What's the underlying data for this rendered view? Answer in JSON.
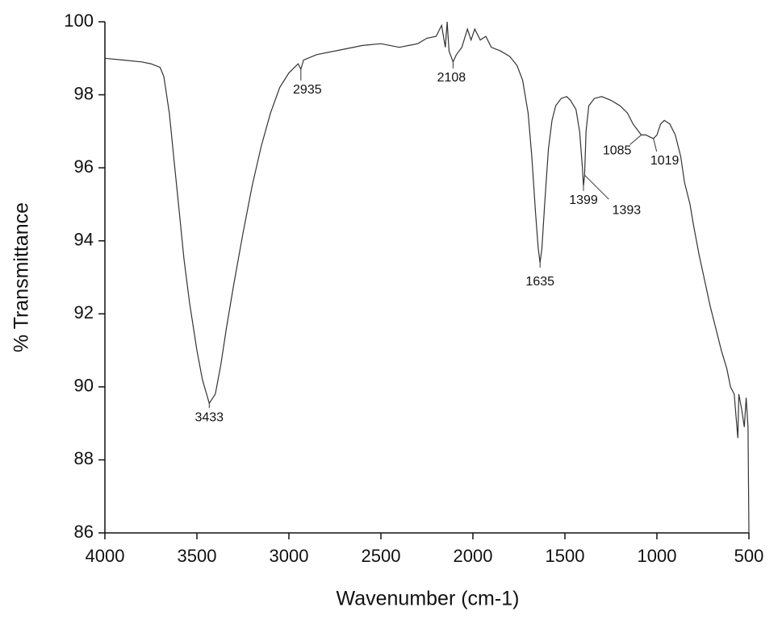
{
  "chart_data": {
    "type": "line",
    "xlabel": "Wavenumber (cm-1)",
    "ylabel": "% Transmittance",
    "xlim": [
      4000,
      500
    ],
    "ylim": [
      86,
      100
    ],
    "xticks": [
      4000,
      3500,
      3000,
      2500,
      2000,
      1500,
      1000,
      500
    ],
    "yticks": [
      86,
      88,
      90,
      92,
      94,
      96,
      98,
      100
    ],
    "color": "#333333",
    "x": [
      4000,
      3900,
      3800,
      3750,
      3700,
      3680,
      3650,
      3620,
      3600,
      3570,
      3540,
      3500,
      3470,
      3433,
      3400,
      3370,
      3340,
      3300,
      3250,
      3200,
      3150,
      3100,
      3050,
      3000,
      2950,
      2935,
      2920,
      2850,
      2700,
      2600,
      2500,
      2400,
      2300,
      2250,
      2200,
      2170,
      2150,
      2140,
      2130,
      2108,
      2090,
      2060,
      2030,
      2010,
      1990,
      1960,
      1930,
      1900,
      1850,
      1800,
      1760,
      1730,
      1700,
      1680,
      1660,
      1645,
      1635,
      1625,
      1610,
      1590,
      1570,
      1550,
      1520,
      1490,
      1470,
      1440,
      1420,
      1405,
      1399,
      1393,
      1385,
      1370,
      1340,
      1300,
      1250,
      1200,
      1160,
      1130,
      1100,
      1085,
      1060,
      1040,
      1019,
      1000,
      980,
      960,
      930,
      900,
      870,
      850,
      820,
      800,
      770,
      740,
      710,
      680,
      650,
      620,
      600,
      580,
      570,
      560,
      555,
      540,
      525,
      515,
      505,
      500
    ],
    "values": [
      99.0,
      98.95,
      98.9,
      98.85,
      98.75,
      98.5,
      97.5,
      96.0,
      95.0,
      93.5,
      92.3,
      91.0,
      90.2,
      89.55,
      89.8,
      90.6,
      91.6,
      92.8,
      94.2,
      95.5,
      96.6,
      97.5,
      98.2,
      98.6,
      98.85,
      98.7,
      98.95,
      99.1,
      99.25,
      99.35,
      99.4,
      99.3,
      99.4,
      99.55,
      99.6,
      99.9,
      99.3,
      100.0,
      99.2,
      98.9,
      99.1,
      99.3,
      99.8,
      99.5,
      99.8,
      99.5,
      99.6,
      99.3,
      99.2,
      99.05,
      98.8,
      98.4,
      97.5,
      96.3,
      94.8,
      93.8,
      93.4,
      93.8,
      95.0,
      96.5,
      97.3,
      97.7,
      97.9,
      97.95,
      97.85,
      97.6,
      97.0,
      96.0,
      95.5,
      95.8,
      97.0,
      97.7,
      97.9,
      97.95,
      97.85,
      97.7,
      97.5,
      97.2,
      97.0,
      96.9,
      96.9,
      96.85,
      96.8,
      96.9,
      97.2,
      97.3,
      97.2,
      96.9,
      96.3,
      95.6,
      95.0,
      94.4,
      93.6,
      92.9,
      92.2,
      91.6,
      91.0,
      90.5,
      90.0,
      89.8,
      89.2,
      88.6,
      89.8,
      89.4,
      88.9,
      89.7,
      88.9,
      86.0
    ],
    "annotations": [
      {
        "x": 3433,
        "y": 89.55
      },
      {
        "x": 2935,
        "y": 98.7
      },
      {
        "x": 2108,
        "y": 98.9
      },
      {
        "x": 1635,
        "y": 93.4
      },
      {
        "x": 1399,
        "y": 95.5
      },
      {
        "x": 1393,
        "y": 95.8
      },
      {
        "x": 1085,
        "y": 96.9
      },
      {
        "x": 1019,
        "y": 96.8
      }
    ]
  }
}
